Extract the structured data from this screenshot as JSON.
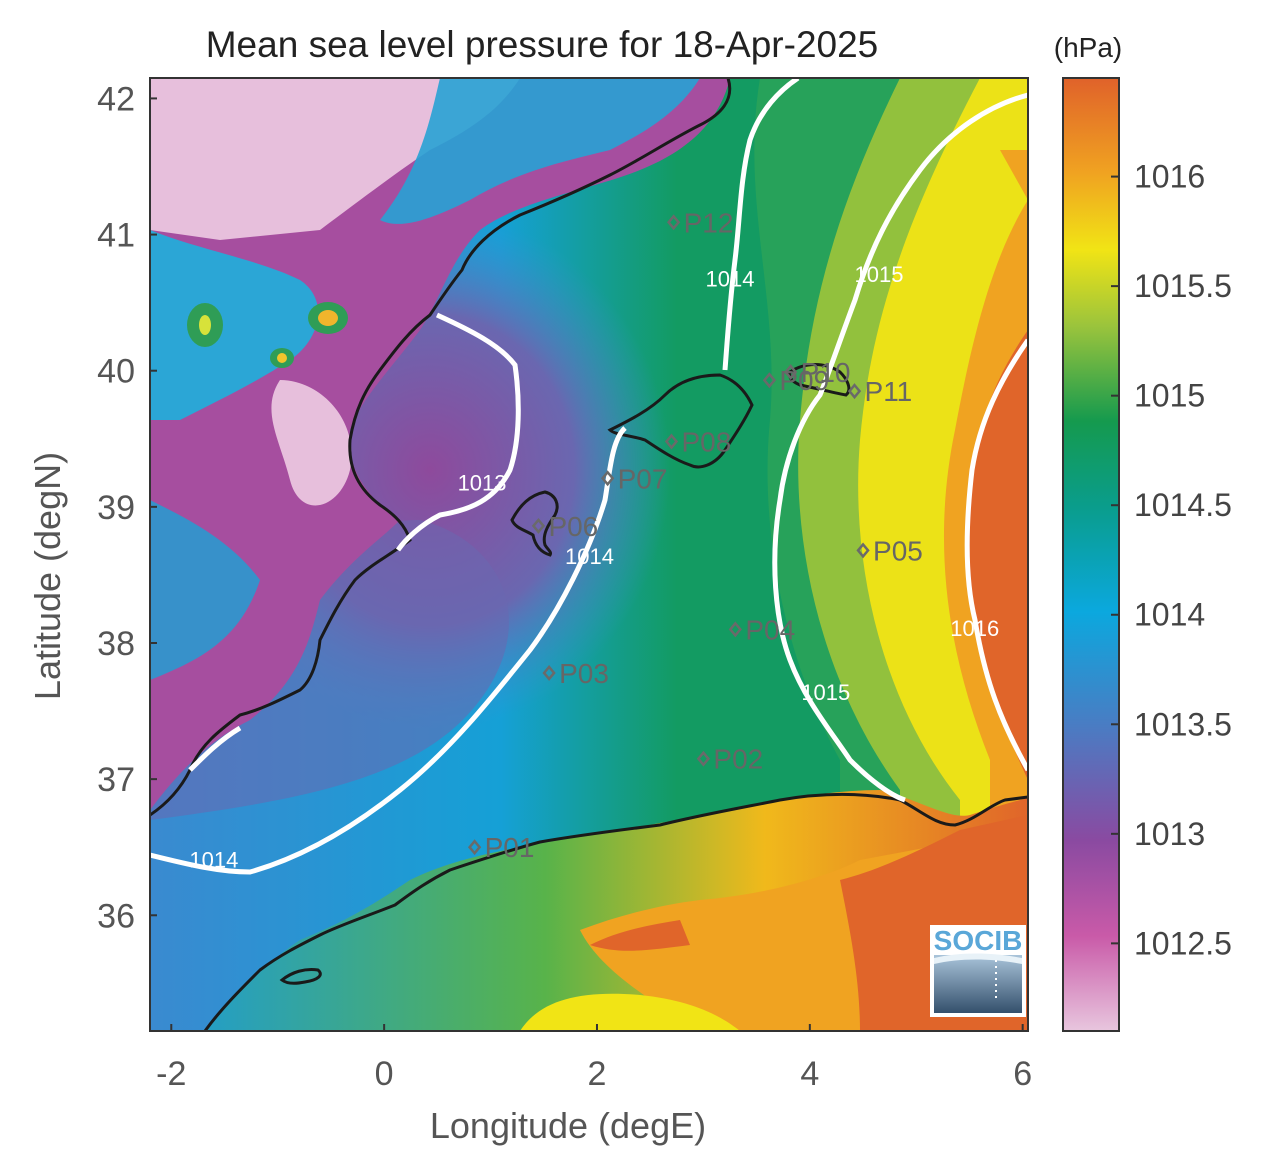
{
  "title": "Mean sea level pressure for 18-Apr-2025",
  "colorbar": {
    "unit": "(hPa)",
    "min": 1012.1,
    "max": 1016.45,
    "ticks": [
      "1012.5",
      "1013",
      "1013.5",
      "1014",
      "1014.5",
      "1015",
      "1015.5",
      "1016"
    ]
  },
  "axes": {
    "xlabel": "Longitude (degE)",
    "ylabel": "Latitude (degN)",
    "xlim": [
      -2.2,
      6.05
    ],
    "ylim": [
      35.15,
      42.15
    ],
    "xticks": [
      "-2",
      "0",
      "2",
      "4",
      "6"
    ],
    "yticks": [
      "36",
      "37",
      "38",
      "39",
      "40",
      "41",
      "42"
    ]
  },
  "contour_labels": [
    {
      "text": "1013",
      "lon": 0.92,
      "lat": 39.12
    },
    {
      "text": "1014",
      "lon": 1.93,
      "lat": 38.58
    },
    {
      "text": "1014",
      "lon": 3.25,
      "lat": 40.62
    },
    {
      "text": "1014",
      "lon": -1.6,
      "lat": 36.35
    },
    {
      "text": "1015",
      "lon": 4.65,
      "lat": 40.65
    },
    {
      "text": "1015",
      "lon": 4.15,
      "lat": 37.58
    },
    {
      "text": "1016",
      "lon": 5.55,
      "lat": 38.05
    }
  ],
  "stations": [
    {
      "name": "P01",
      "lon": 0.85,
      "lat": 36.5
    },
    {
      "name": "P02",
      "lon": 3.0,
      "lat": 37.15
    },
    {
      "name": "P03",
      "lon": 1.55,
      "lat": 37.78
    },
    {
      "name": "P04",
      "lon": 3.3,
      "lat": 38.1
    },
    {
      "name": "P05",
      "lon": 4.5,
      "lat": 38.68
    },
    {
      "name": "P06",
      "lon": 1.45,
      "lat": 38.86
    },
    {
      "name": "P07",
      "lon": 2.1,
      "lat": 39.21
    },
    {
      "name": "P08",
      "lon": 2.7,
      "lat": 39.48
    },
    {
      "name": "P09",
      "lon": 3.62,
      "lat": 39.93
    },
    {
      "name": "P10",
      "lon": 3.82,
      "lat": 39.99
    },
    {
      "name": "P11",
      "lon": 4.42,
      "lat": 39.85
    },
    {
      "name": "P12",
      "lon": 2.72,
      "lat": 41.09
    }
  ],
  "logo": "SOCIB",
  "colors": {
    "land_high": "#e7bfdc",
    "low": "#a04a9c",
    "mid_blue": "#1aa1d9",
    "green": "#159a54",
    "yellow": "#f1e415",
    "orange": "#e0652a",
    "contour": "#ffffff",
    "coast": "#1a1a1a",
    "station": "#6a6a6a"
  }
}
